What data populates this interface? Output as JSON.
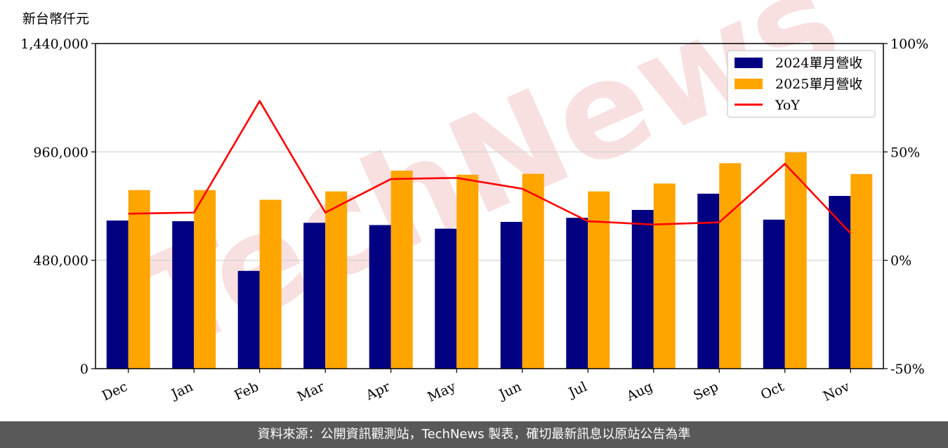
{
  "unit_label": "新台幣仟元",
  "watermark": "TechNews",
  "footer": "資料來源：公開資訊觀測站，TechNews 製表，確切最新訊息以原站公告為準",
  "colors": {
    "series_2024": "#000080",
    "series_2025": "#FFA500",
    "yoy": "#FF0000"
  },
  "chart_data": {
    "type": "bar",
    "categories": [
      "Dec",
      "Jan",
      "Feb",
      "Mar",
      "Apr",
      "May",
      "Jun",
      "Jul",
      "Aug",
      "Sep",
      "Oct",
      "Nov"
    ],
    "series": [
      {
        "name": "2024單月營收",
        "axis": "left",
        "values": [
          656000,
          653000,
          433000,
          646000,
          636000,
          620000,
          650000,
          668000,
          703000,
          775000,
          660000,
          765000
        ]
      },
      {
        "name": "2025單月營收",
        "axis": "left",
        "values": [
          791000,
          791000,
          748000,
          785000,
          877000,
          859000,
          863000,
          785000,
          820000,
          910000,
          958000,
          862000
        ]
      }
    ],
    "line_series": [
      {
        "name": "YoY",
        "axis": "right",
        "type": "line",
        "values": [
          21.5,
          22.0,
          73.5,
          22.0,
          37.5,
          38.0,
          33.0,
          18.0,
          16.5,
          17.5,
          44.5,
          12.5
        ]
      }
    ],
    "y_left": {
      "lim": [
        0,
        1440000
      ],
      "ticks": [
        0,
        480000,
        960000,
        1440000
      ],
      "tick_labels": [
        "0",
        "480,000",
        "960,000",
        "1,440,000"
      ]
    },
    "y_right": {
      "lim": [
        -50,
        100
      ],
      "ticks": [
        -50,
        0,
        50,
        100
      ],
      "tick_labels": [
        "-50%",
        "0%",
        "50%",
        "100%"
      ]
    },
    "grid": "horizontal",
    "legend": {
      "placement": "top-right",
      "entries": [
        "2024單月營收",
        "2025單月營收",
        "YoY"
      ]
    },
    "title": "",
    "xlabel": "",
    "ylabel": ""
  }
}
